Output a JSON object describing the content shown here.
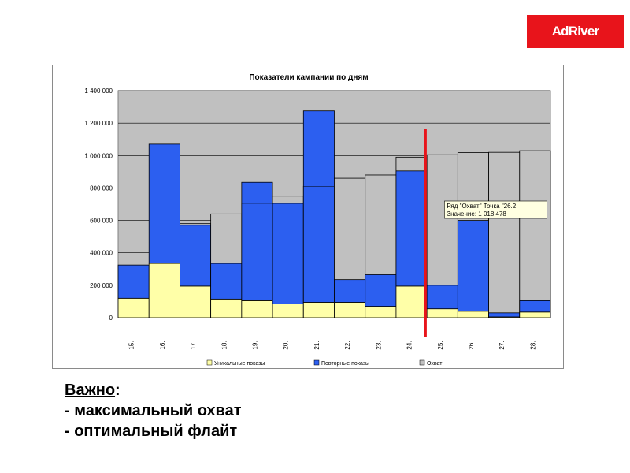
{
  "logo": {
    "text": "AdRiver",
    "bg": "#e8141b"
  },
  "note": {
    "heading": "Важно",
    "colon": ":",
    "items": [
      "- максимальный охват",
      "- оптимальный флайт"
    ]
  },
  "tooltip": {
    "line1": "Ряд \"Охват\" Точка \"26.2.",
    "line2": "Значение: 1 018 478"
  },
  "colors": {
    "unique": "#ffffa8",
    "repeat": "#2c5ff0",
    "reach": "#c0c0c0",
    "plot_bg": "#c0c0c0",
    "marker": "#e8141b"
  },
  "chart_data": {
    "type": "bar",
    "title": "Показатели кампании по дням",
    "categories": [
      "15.",
      "16.",
      "17.",
      "18.",
      "19.",
      "20.",
      "21.",
      "22.",
      "23.",
      "24.",
      "25.",
      "26.",
      "27.",
      "28."
    ],
    "series": [
      {
        "name": "Уникальные показы",
        "values": [
          120000,
          335000,
          195000,
          115000,
          105000,
          85000,
          95000,
          95000,
          70000,
          195000,
          55000,
          40000,
          5000,
          35000
        ]
      },
      {
        "name": "Повторные показы",
        "values": [
          205000,
          735000,
          375000,
          220000,
          730000,
          620000,
          1180000,
          140000,
          195000,
          710000,
          145000,
          560000,
          25000,
          70000
        ]
      },
      {
        "name": "Охват",
        "values": [
          0,
          0,
          580000,
          640000,
          705000,
          750000,
          810000,
          860000,
          880000,
          990000,
          1005000,
          1018478,
          1020000,
          1030000
        ]
      }
    ],
    "y_ticks": [
      "0",
      "200 000",
      "400 000",
      "600 000",
      "800 000",
      "1 000 000",
      "1 200 000",
      "1 400 000"
    ],
    "ylim": [
      0,
      1400000
    ],
    "grid": true,
    "legend": "bottom",
    "marker_after_category": "24."
  }
}
